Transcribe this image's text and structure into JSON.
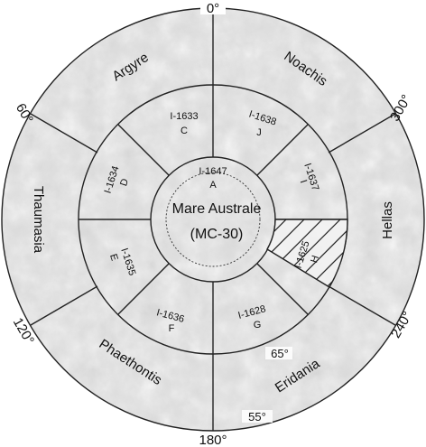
{
  "title": {
    "name": "Mare Australe",
    "code": "(MC-30)"
  },
  "longitudes": {
    "top": "0°",
    "upper_right": "300°",
    "right_lower": "240°",
    "bottom": "180°",
    "lower_left": "120°",
    "upper_left": "60°"
  },
  "latitudes": {
    "inner": "65°",
    "outer": "55°"
  },
  "regions": [
    "Argyre",
    "Noachis",
    "Hellas",
    "Eridania",
    "Phaethontis",
    "Thaumasia"
  ],
  "quadrangles": {
    "A": {
      "id": "I-1647",
      "letter": "A"
    },
    "C": {
      "id": "I-1633",
      "letter": "C"
    },
    "J": {
      "id": "I-1638",
      "letter": "J"
    },
    "I": {
      "id": "I-1637",
      "letter": "I"
    },
    "D": {
      "id": "I-1634",
      "letter": "D"
    },
    "E": {
      "id": "I-1635",
      "letter": "E"
    },
    "H": {
      "id": "I-1625",
      "letter": "H"
    },
    "F": {
      "id": "I-1636",
      "letter": "F"
    },
    "G": {
      "id": "I-1628",
      "letter": "G"
    }
  },
  "colors": {
    "terrain_light": "#e6e6e6",
    "terrain_dark": "#bdbdbd",
    "line": "#222222"
  }
}
